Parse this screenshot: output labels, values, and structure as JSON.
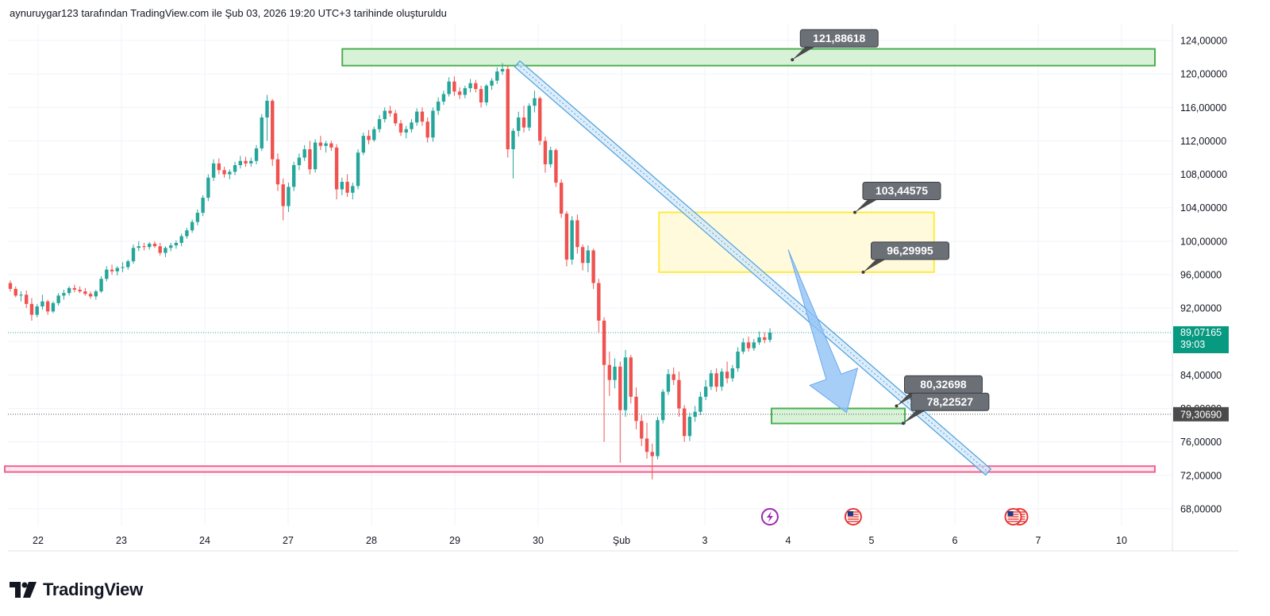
{
  "header": {
    "caption": "aynuruygar123 tarafından TradingView.com ile Şub 03, 2026 19:20 UTC+3 tarihinde oluşturuldu"
  },
  "brand": {
    "name": "TradingView",
    "logo_icon": "tradingview-logo-icon"
  },
  "colors": {
    "up": "#26a69a",
    "down": "#ef5350",
    "grid": "#f0f3fa",
    "zone_green_fill": "#d1f0d1",
    "zone_green_stroke": "#4caf50",
    "zone_yellow_fill": "#fff9d6",
    "zone_yellow_stroke": "#ffeb3b",
    "zone_pink_stroke": "#f06292",
    "channel": "#4a9fd8",
    "arrow": "#90c2f5",
    "price_badge": "#089981",
    "level_badge": "#4b4b4b"
  },
  "chart_data": {
    "type": "candlestick",
    "title": "",
    "y_axis": {
      "min": 66,
      "max": 126,
      "ticks": [
        "124,00000",
        "120,00000",
        "116,00000",
        "112,00000",
        "108,00000",
        "104,00000",
        "100,00000",
        "96,00000",
        "92,00000",
        "88,00000",
        "84,00000",
        "80,00000",
        "76,00000",
        "72,00000",
        "68,00000"
      ],
      "tick_values": [
        124,
        120,
        116,
        112,
        108,
        104,
        100,
        96,
        92,
        88,
        84,
        80,
        76,
        72,
        68
      ]
    },
    "x_axis": {
      "labels": [
        "22",
        "23",
        "24",
        "27",
        "28",
        "29",
        "30",
        "Şub",
        "3",
        "4",
        "5",
        "6",
        "7",
        "10"
      ],
      "label_positions": [
        0,
        1,
        2,
        3,
        4,
        5,
        6,
        7,
        8,
        9,
        10,
        11,
        12,
        13
      ]
    },
    "current_price": {
      "value": 89.07165,
      "label": "89,07165",
      "countdown": "39:03"
    },
    "marker_line": {
      "value": 79.3069,
      "label": "79,30690"
    },
    "zones": [
      {
        "name": "resistance-top",
        "x_start": 3.65,
        "x_end": 13.4,
        "y_low": 121.0,
        "y_high": 123.0,
        "label": "121,88618"
      },
      {
        "name": "supply-zone",
        "x_start": 7.45,
        "x_end": 10.75,
        "y_low": 96.3,
        "y_high": 103.45,
        "labels": [
          "103,44575",
          "96,29995"
        ]
      },
      {
        "name": "target-zone",
        "x_start": 8.8,
        "x_end": 10.4,
        "y_low": 78.2,
        "y_high": 80.0,
        "labels": [
          "80,32698",
          "78,22527"
        ]
      },
      {
        "name": "support-line",
        "x_start": -0.4,
        "x_end": 13.4,
        "y_low": 72.4,
        "y_high": 73.1
      }
    ],
    "channel": {
      "x_start": 5.75,
      "y_start": 121.2,
      "x_end": 11.4,
      "y_end": 72.4
    },
    "arrow": {
      "x_start": 9.0,
      "y_start": 99.0,
      "x_end": 9.7,
      "y_end": 79.5
    },
    "candles": [
      [
        95.0,
        95.3,
        94.0,
        94.3
      ],
      [
        94.3,
        94.6,
        93.3,
        93.5
      ],
      [
        93.5,
        94.0,
        92.8,
        93.6
      ],
      [
        93.6,
        94.1,
        92.0,
        92.5
      ],
      [
        92.5,
        93.2,
        90.5,
        91.2
      ],
      [
        91.2,
        92.5,
        90.9,
        92.2
      ],
      [
        92.2,
        93.6,
        91.8,
        92.8
      ],
      [
        92.8,
        93.0,
        91.2,
        91.6
      ],
      [
        91.6,
        92.8,
        91.4,
        92.6
      ],
      [
        92.6,
        93.8,
        92.3,
        93.5
      ],
      [
        93.5,
        94.2,
        93.0,
        93.8
      ],
      [
        93.8,
        94.6,
        93.5,
        94.4
      ],
      [
        94.4,
        94.8,
        93.9,
        94.2
      ],
      [
        94.2,
        94.6,
        93.8,
        94.0
      ],
      [
        94.0,
        94.4,
        93.5,
        93.7
      ],
      [
        93.7,
        94.0,
        93.1,
        93.4
      ],
      [
        93.4,
        94.2,
        93.0,
        94.0
      ],
      [
        94.0,
        95.8,
        93.8,
        95.5
      ],
      [
        95.5,
        97.0,
        95.2,
        96.6
      ],
      [
        96.6,
        97.2,
        96.0,
        96.4
      ],
      [
        96.4,
        97.0,
        95.9,
        96.8
      ],
      [
        96.8,
        97.5,
        96.3,
        96.9
      ],
      [
        96.9,
        97.8,
        96.6,
        97.6
      ],
      [
        97.6,
        99.6,
        97.3,
        99.2
      ],
      [
        99.2,
        100.0,
        98.8,
        99.4
      ],
      [
        99.4,
        99.8,
        98.9,
        99.3
      ],
      [
        99.3,
        99.9,
        99.0,
        99.7
      ],
      [
        99.7,
        100.0,
        99.2,
        99.4
      ],
      [
        99.4,
        99.8,
        98.3,
        98.6
      ],
      [
        98.6,
        99.4,
        98.1,
        99.2
      ],
      [
        99.2,
        99.8,
        98.8,
        99.5
      ],
      [
        99.5,
        100.1,
        99.1,
        99.8
      ],
      [
        99.8,
        100.9,
        99.4,
        100.6
      ],
      [
        100.6,
        101.6,
        100.3,
        101.3
      ],
      [
        101.3,
        102.6,
        101.0,
        102.3
      ],
      [
        102.3,
        103.8,
        101.9,
        103.4
      ],
      [
        103.4,
        105.5,
        103.0,
        105.2
      ],
      [
        105.2,
        108.0,
        104.8,
        107.6
      ],
      [
        107.6,
        109.8,
        107.2,
        109.3
      ],
      [
        109.3,
        109.9,
        108.0,
        108.5
      ],
      [
        108.5,
        108.9,
        107.6,
        108.0
      ],
      [
        108.0,
        108.6,
        107.4,
        108.3
      ],
      [
        108.3,
        109.5,
        107.9,
        109.1
      ],
      [
        109.1,
        110.2,
        108.7,
        109.6
      ],
      [
        109.6,
        110.1,
        108.9,
        109.3
      ],
      [
        109.3,
        110.0,
        108.9,
        109.6
      ],
      [
        109.6,
        111.5,
        109.2,
        111.1
      ],
      [
        111.1,
        115.2,
        110.8,
        114.8
      ],
      [
        114.8,
        117.5,
        112.0,
        116.8
      ],
      [
        116.8,
        117.0,
        109.0,
        109.8
      ],
      [
        109.8,
        110.5,
        106.0,
        106.8
      ],
      [
        106.8,
        107.5,
        102.5,
        104.2
      ],
      [
        104.2,
        107.0,
        103.5,
        106.5
      ],
      [
        106.5,
        109.5,
        106.0,
        109.1
      ],
      [
        109.1,
        110.5,
        108.5,
        110.0
      ],
      [
        110.0,
        111.5,
        109.6,
        111.0
      ],
      [
        111.0,
        112.0,
        108.0,
        108.6
      ],
      [
        108.6,
        112.2,
        108.2,
        111.8
      ],
      [
        111.8,
        112.6,
        110.9,
        111.4
      ],
      [
        111.4,
        112.0,
        110.6,
        111.7
      ],
      [
        111.7,
        112.0,
        110.8,
        111.2
      ],
      [
        111.2,
        111.6,
        105.0,
        106.2
      ],
      [
        106.2,
        107.6,
        105.5,
        107.1
      ],
      [
        107.1,
        108.0,
        105.3,
        105.8
      ],
      [
        105.8,
        107.0,
        105.0,
        106.6
      ],
      [
        106.6,
        111.0,
        106.2,
        110.6
      ],
      [
        110.6,
        113.0,
        110.3,
        112.6
      ],
      [
        112.6,
        113.3,
        111.6,
        112.1
      ],
      [
        112.1,
        113.7,
        111.9,
        113.4
      ],
      [
        113.4,
        115.1,
        113.0,
        114.6
      ],
      [
        114.6,
        116.0,
        114.2,
        115.6
      ],
      [
        115.6,
        116.2,
        114.9,
        115.3
      ],
      [
        115.3,
        115.7,
        113.8,
        114.1
      ],
      [
        114.1,
        114.5,
        112.6,
        113.0
      ],
      [
        113.0,
        113.8,
        112.3,
        113.4
      ],
      [
        113.4,
        114.6,
        113.0,
        114.2
      ],
      [
        114.2,
        115.9,
        113.8,
        115.5
      ],
      [
        115.5,
        116.0,
        113.8,
        114.3
      ],
      [
        114.3,
        114.8,
        111.8,
        112.4
      ],
      [
        112.4,
        116.0,
        111.9,
        115.6
      ],
      [
        115.6,
        117.2,
        115.1,
        116.7
      ],
      [
        116.7,
        118.0,
        116.3,
        117.6
      ],
      [
        117.6,
        119.6,
        117.3,
        119.1
      ],
      [
        119.1,
        119.7,
        117.4,
        117.9
      ],
      [
        117.9,
        118.4,
        117.0,
        117.5
      ],
      [
        117.5,
        118.6,
        117.1,
        118.3
      ],
      [
        118.3,
        119.4,
        117.8,
        118.9
      ],
      [
        118.9,
        119.3,
        117.8,
        118.2
      ],
      [
        118.2,
        118.6,
        116.0,
        116.6
      ],
      [
        116.6,
        118.8,
        116.2,
        118.6
      ],
      [
        118.6,
        119.5,
        118.1,
        119.2
      ],
      [
        119.2,
        120.8,
        118.8,
        120.3
      ],
      [
        120.3,
        121.3,
        119.9,
        120.6
      ],
      [
        120.6,
        121.0,
        110.0,
        111.0
      ],
      [
        111.0,
        113.5,
        107.5,
        113.2
      ],
      [
        113.2,
        115.5,
        112.5,
        114.8
      ],
      [
        114.8,
        116.2,
        113.0,
        113.6
      ],
      [
        113.6,
        116.5,
        113.2,
        116.2
      ],
      [
        116.2,
        118.0,
        115.4,
        117.1
      ],
      [
        117.1,
        117.3,
        111.5,
        112.0
      ],
      [
        112.0,
        112.5,
        108.2,
        109.2
      ],
      [
        109.2,
        111.3,
        108.8,
        110.9
      ],
      [
        110.9,
        111.1,
        106.5,
        107.0
      ],
      [
        107.0,
        107.4,
        102.8,
        103.3
      ],
      [
        103.3,
        103.6,
        97.0,
        97.8
      ],
      [
        97.8,
        103.0,
        97.2,
        102.5
      ],
      [
        102.5,
        103.2,
        98.5,
        99.3
      ],
      [
        99.3,
        99.6,
        96.5,
        97.4
      ],
      [
        97.4,
        99.5,
        96.3,
        98.9
      ],
      [
        98.9,
        99.1,
        94.3,
        95.0
      ],
      [
        95.0,
        95.5,
        89.0,
        90.5
      ],
      [
        90.5,
        90.9,
        76.0,
        85.2
      ],
      [
        85.2,
        86.8,
        81.5,
        83.4
      ],
      [
        83.4,
        86.0,
        82.4,
        85.0
      ],
      [
        85.0,
        85.6,
        73.5,
        79.8
      ],
      [
        79.8,
        87.0,
        79.0,
        86.1
      ],
      [
        86.1,
        86.4,
        80.6,
        81.4
      ],
      [
        81.4,
        82.5,
        77.5,
        78.5
      ],
      [
        78.5,
        79.2,
        75.5,
        76.4
      ],
      [
        76.4,
        78.3,
        74.0,
        74.8
      ],
      [
        74.8,
        75.8,
        71.5,
        74.3
      ],
      [
        74.3,
        79.0,
        73.9,
        78.6
      ],
      [
        78.6,
        82.3,
        78.2,
        82.0
      ],
      [
        82.0,
        84.7,
        81.6,
        84.1
      ],
      [
        84.1,
        84.9,
        82.8,
        83.4
      ],
      [
        83.4,
        84.4,
        79.0,
        80.0
      ],
      [
        80.0,
        80.4,
        76.0,
        76.7
      ],
      [
        76.7,
        79.5,
        76.1,
        79.0
      ],
      [
        79.0,
        80.3,
        78.4,
        79.6
      ],
      [
        79.6,
        82.0,
        79.2,
        81.4
      ],
      [
        81.4,
        83.4,
        81.0,
        82.6
      ],
      [
        82.6,
        84.6,
        82.2,
        84.2
      ],
      [
        84.2,
        84.8,
        82.0,
        82.6
      ],
      [
        82.6,
        84.8,
        82.1,
        84.4
      ],
      [
        84.4,
        85.6,
        83.0,
        83.6
      ],
      [
        83.6,
        85.2,
        83.2,
        84.8
      ],
      [
        84.8,
        87.3,
        84.4,
        86.8
      ],
      [
        86.8,
        88.4,
        86.5,
        87.9
      ],
      [
        87.9,
        88.6,
        86.8,
        87.2
      ],
      [
        87.2,
        88.3,
        86.9,
        87.9
      ],
      [
        87.9,
        89.2,
        87.6,
        88.5
      ],
      [
        88.5,
        89.1,
        87.8,
        88.2
      ],
      [
        88.2,
        89.6,
        87.9,
        89.07
      ]
    ],
    "callouts": [
      {
        "text": "121,88618",
        "anchor_x": 9.05,
        "anchor_y": 121.7
      },
      {
        "text": "103,44575",
        "anchor_x": 9.8,
        "anchor_y": 103.45
      },
      {
        "text": "96,29995",
        "anchor_x": 9.9,
        "anchor_y": 96.3
      },
      {
        "text": "80,32698",
        "anchor_x": 10.3,
        "anchor_y": 80.3
      },
      {
        "text": "78,22527",
        "anchor_x": 10.38,
        "anchor_y": 78.22
      }
    ],
    "event_icons": [
      {
        "name": "lightning-event-icon",
        "x": 8.78
      },
      {
        "name": "us-flag-event-icon",
        "x": 9.78
      },
      {
        "name": "us-flag-double-event-icon",
        "x": 11.7
      }
    ]
  }
}
